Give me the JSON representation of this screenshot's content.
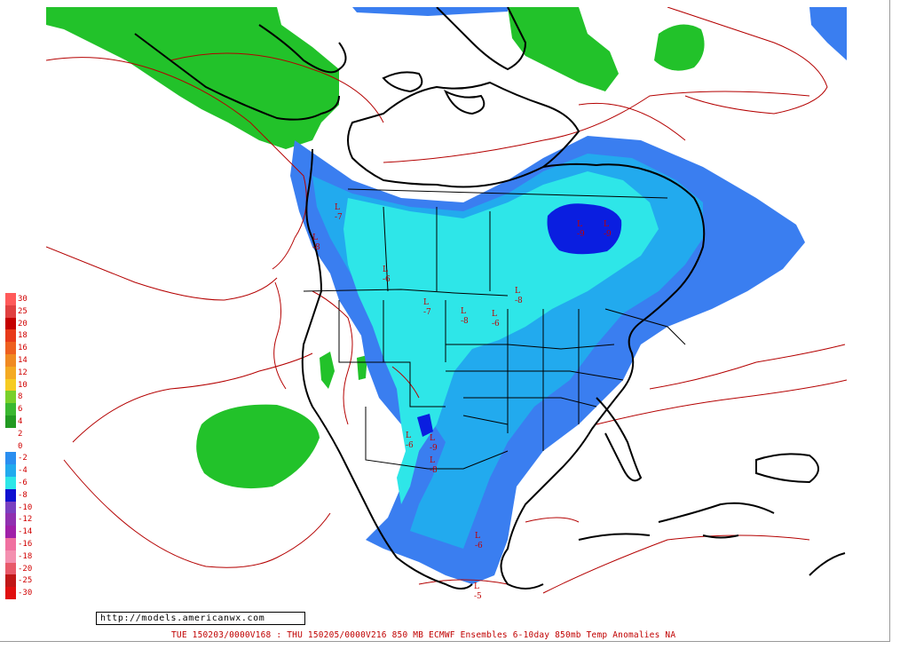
{
  "colors": {
    "green": "#22c22a",
    "blue_light": "#2ee6e8",
    "blue_mid": "#22aaee",
    "blue_dark": "#3a7ef0",
    "blue_deep": "#0a1ee0",
    "contour_red": "#b40000",
    "coast": "#000000"
  },
  "legend": [
    {
      "label": "30",
      "color": "#ff5a5a"
    },
    {
      "label": "25",
      "color": "#e04040"
    },
    {
      "label": "20",
      "color": "#c40000"
    },
    {
      "label": "18",
      "color": "#e83a1a"
    },
    {
      "label": "16",
      "color": "#ee6020"
    },
    {
      "label": "14",
      "color": "#f08a22"
    },
    {
      "label": "12",
      "color": "#f4aa22"
    },
    {
      "label": "10",
      "color": "#f6cc22"
    },
    {
      "label": "8",
      "color": "#7ad02a"
    },
    {
      "label": "6",
      "color": "#3ab830"
    },
    {
      "label": "4",
      "color": "#229a22"
    },
    {
      "label": "2",
      "color": "#ffffff"
    },
    {
      "label": "0",
      "color": "#ffffff"
    },
    {
      "label": "-2",
      "color": "#2a8ef0"
    },
    {
      "label": "-4",
      "color": "#22aaee"
    },
    {
      "label": "-6",
      "color": "#2ee6e8"
    },
    {
      "label": "-8",
      "color": "#1010d0"
    },
    {
      "label": "-10",
      "color": "#7a40c0"
    },
    {
      "label": "-12",
      "color": "#9030b0"
    },
    {
      "label": "-14",
      "color": "#a020a8"
    },
    {
      "label": "-16",
      "color": "#f070a0"
    },
    {
      "label": "-18",
      "color": "#f490b0"
    },
    {
      "label": "-20",
      "color": "#e85a6a"
    },
    {
      "label": "-25",
      "color": "#c01818"
    },
    {
      "label": "-30",
      "color": "#e01010"
    }
  ],
  "lows": [
    {
      "letter": "L",
      "value": "-9"
    },
    {
      "letter": "L",
      "value": "-9"
    },
    {
      "letter": "L",
      "value": "-8"
    },
    {
      "letter": "L",
      "value": "-7"
    },
    {
      "letter": "L",
      "value": "-8"
    },
    {
      "letter": "L",
      "value": "-6"
    },
    {
      "letter": "L",
      "value": "-6"
    },
    {
      "letter": "L",
      "value": "-7"
    },
    {
      "letter": "L",
      "value": "-8"
    },
    {
      "letter": "L",
      "value": "-9"
    },
    {
      "letter": "L",
      "value": "-8"
    },
    {
      "letter": "L",
      "value": "-6"
    },
    {
      "letter": "L",
      "value": "-5"
    },
    {
      "letter": "L",
      "value": "-6"
    }
  ],
  "url_box": "http://models.americanwx.com",
  "footer": "TUE 150203/0000V168 : THU 150205/0000V216  850 MB ECMWF Ensembles 6-10day 850mb Temp Anomalies NA"
}
